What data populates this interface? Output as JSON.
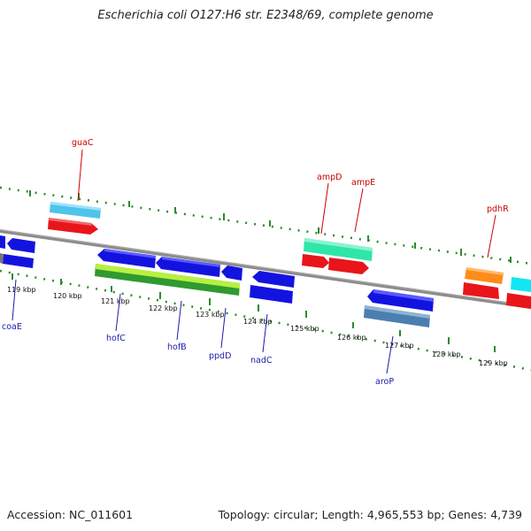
{
  "header": {
    "title": "Escherichia coli O127:H6 str. E2348/69, complete genome"
  },
  "footer": {
    "accession": "Accession: NC_011601",
    "summary": "Topology: circular; Length: 4,965,553 bp; Genes: 4,739"
  },
  "colors": {
    "backbone": "#8c8c8c",
    "dotted_track": "#2e8b2e",
    "label_top": "#cc0000",
    "label_bottom": "#1a1aaa"
  },
  "scale_labels": [
    "119 kbp",
    "120 kbp",
    "121 kbp",
    "122 kbp",
    "123 kbp",
    "124 kbp",
    "125 kbp",
    "126 kbp",
    "127 kbp",
    "128 kbp",
    "129 kbp"
  ],
  "gene_labels": {
    "guaC": "guaC",
    "ampD": "ampD",
    "ampE": "ampE",
    "pdhR": "pdhR",
    "coaE": "coaE",
    "hofC": "hofC",
    "hofB": "hofB",
    "ppdD": "ppdD",
    "nadC": "nadC",
    "aroP": "aroP"
  }
}
